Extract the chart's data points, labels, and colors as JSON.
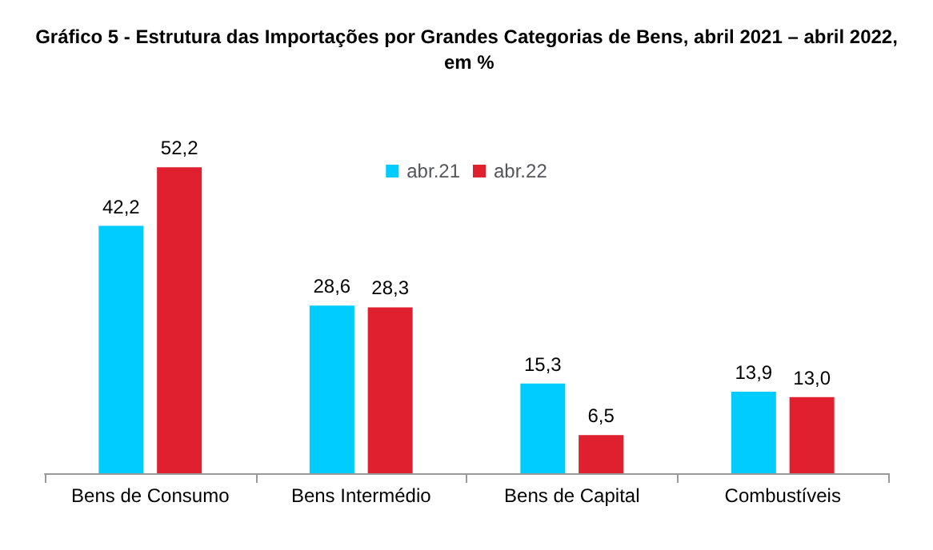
{
  "chart_data": {
    "type": "bar",
    "title": "Gráfico 5 - Estrutura das Importações por Grandes Categorias de Bens, abril 2021 – abril 2022, em %",
    "categories": [
      "Bens de Consumo",
      "Bens Intermédio",
      "Bens de Capital",
      "Combustíveis"
    ],
    "series": [
      {
        "name": "abr.21",
        "color": "#00ccff",
        "values": [
          42.2,
          28.6,
          15.3,
          13.9
        ],
        "value_labels": [
          "42,2",
          "28,6",
          "15,3",
          "13,9"
        ]
      },
      {
        "name": "abr.22",
        "color": "#e0202f",
        "values": [
          52.2,
          28.3,
          6.5,
          13.0
        ],
        "value_labels": [
          "52,2",
          "28,3",
          "6,5",
          "13,0"
        ]
      }
    ],
    "legend": "top",
    "tick_labels": "x"
  }
}
